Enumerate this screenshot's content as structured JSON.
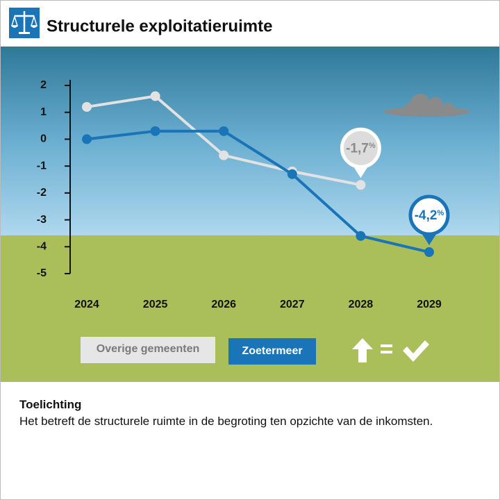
{
  "chart_data": {
    "type": "line",
    "title": "Structurele exploitatieruimte",
    "categories": [
      "2024",
      "2025",
      "2026",
      "2027",
      "2028",
      "2029"
    ],
    "series": [
      {
        "name": "Overige gemeenten",
        "color": "#e2e2e2",
        "values": [
          1.2,
          1.6,
          -0.6,
          -1.2,
          -1.7,
          null
        ],
        "value_labels": [
          null,
          null,
          null,
          null,
          "-1,7%",
          null
        ]
      },
      {
        "name": "Zoetermeer",
        "color": "#1a74b8",
        "values": [
          0,
          0.3,
          0.3,
          -1.3,
          -3.6,
          -4.2
        ],
        "value_labels": [
          null,
          null,
          null,
          null,
          null,
          "-4,2%"
        ]
      }
    ],
    "ylim": [
      -5,
      2
    ],
    "yticks": [
      -5,
      -4,
      -3,
      -2,
      -1,
      0,
      1,
      2
    ],
    "grid": false
  },
  "note": {
    "title": "Toelichting",
    "text": "Het betreft de structurele ruimte in de begroting ten opzichte van de inkomsten."
  }
}
